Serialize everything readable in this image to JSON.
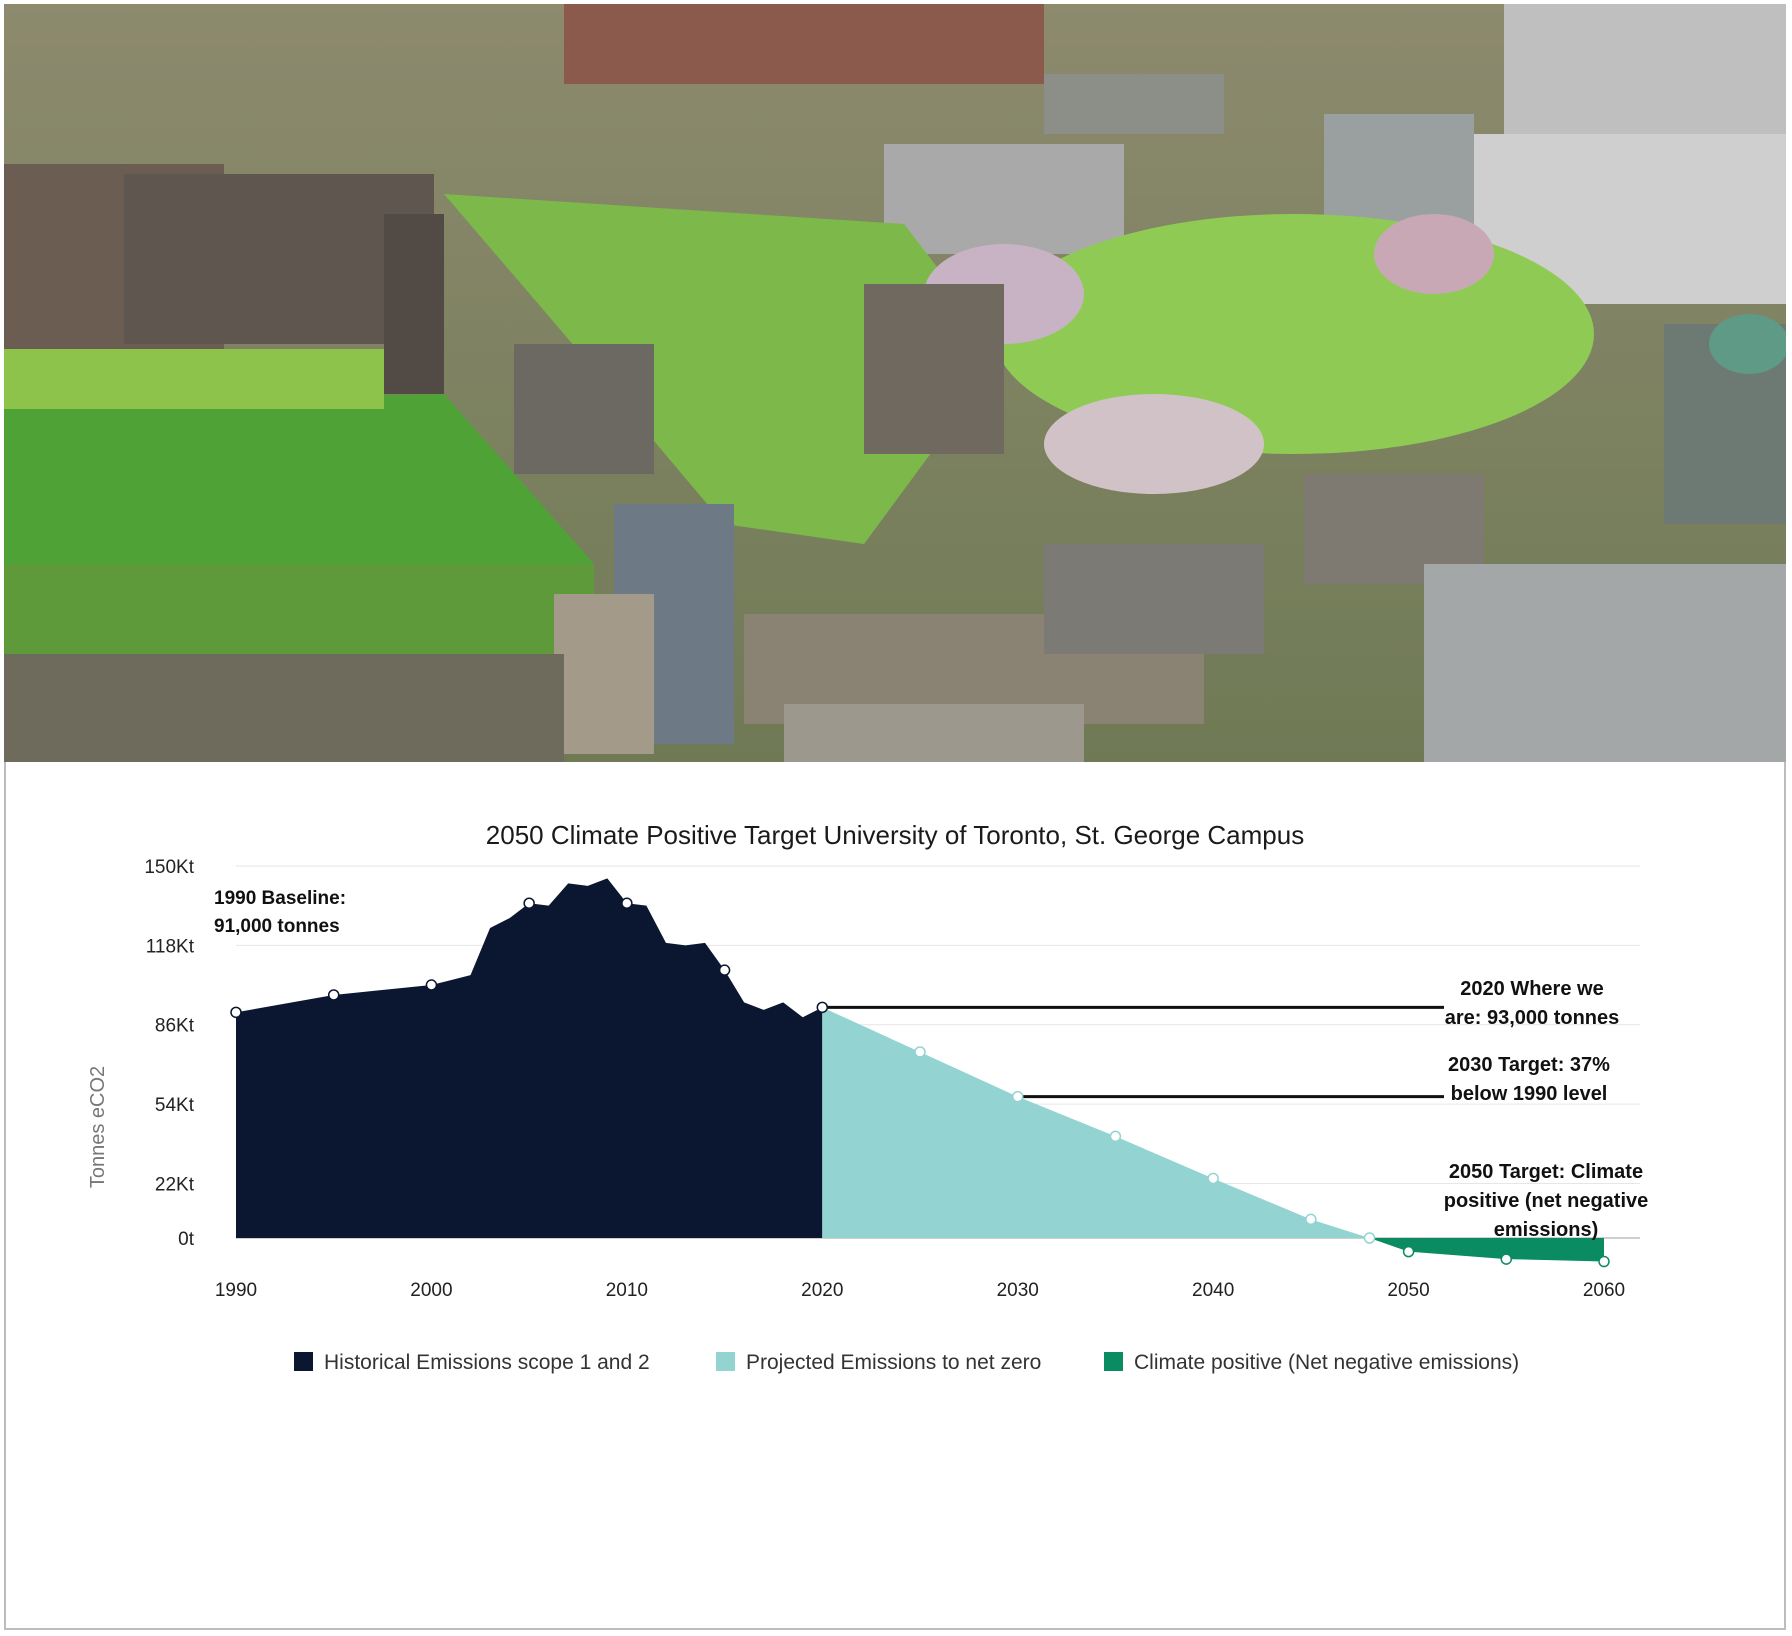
{
  "photo": {
    "description_icon": "aerial-campus-photo"
  },
  "chart_data": {
    "type": "area",
    "title": "2050 Climate Positive Target University of Toronto, St. George Campus",
    "ylabel": "Tonnes eCO2",
    "xlabel": "",
    "x_ticks": [
      1990,
      2000,
      2010,
      2020,
      2030,
      2040,
      2050,
      2060
    ],
    "y_ticks": [
      {
        "value": 0,
        "label": "0t"
      },
      {
        "value": 22000,
        "label": "22Kt"
      },
      {
        "value": 54000,
        "label": "54Kt"
      },
      {
        "value": 86000,
        "label": "86Kt"
      },
      {
        "value": 118000,
        "label": "118Kt"
      },
      {
        "value": 150000,
        "label": "150Kt"
      }
    ],
    "xlim": [
      1990,
      2060
    ],
    "ylim": [
      -10000,
      150000
    ],
    "grid": true,
    "legend_position": "bottom",
    "series": [
      {
        "name": "Historical Emissions scope 1 and 2",
        "color": "#0b1630",
        "points": [
          [
            1990,
            91000
          ],
          [
            1995,
            98000
          ],
          [
            2000,
            102000
          ],
          [
            2001,
            104000
          ],
          [
            2002,
            106000
          ],
          [
            2003,
            125000
          ],
          [
            2004,
            129000
          ],
          [
            2005,
            135000
          ],
          [
            2006,
            134000
          ],
          [
            2007,
            143000
          ],
          [
            2008,
            142000
          ],
          [
            2009,
            145000
          ],
          [
            2010,
            135000
          ],
          [
            2011,
            134000
          ],
          [
            2012,
            119000
          ],
          [
            2013,
            118000
          ],
          [
            2014,
            119000
          ],
          [
            2015,
            108000
          ],
          [
            2016,
            95000
          ],
          [
            2017,
            92000
          ],
          [
            2018,
            95000
          ],
          [
            2019,
            89000
          ],
          [
            2020,
            93000
          ]
        ],
        "markers": [
          1990,
          1995,
          2000,
          2005,
          2010,
          2015,
          2020
        ]
      },
      {
        "name": "Projected Emissions to net zero",
        "color": "#93d4d2",
        "points": [
          [
            2020,
            93000
          ],
          [
            2025,
            75000
          ],
          [
            2030,
            57000
          ],
          [
            2035,
            41000
          ],
          [
            2040,
            24000
          ],
          [
            2045,
            7500
          ],
          [
            2048,
            0
          ]
        ],
        "markers": [
          2025,
          2030,
          2035,
          2040,
          2045,
          2048
        ]
      },
      {
        "name": "Climate positive (Net negative emissions)",
        "color": "#0b8b62",
        "points": [
          [
            2048,
            0
          ],
          [
            2050,
            -5500
          ],
          [
            2055,
            -8500
          ],
          [
            2060,
            -9500
          ]
        ],
        "markers": [
          2050,
          2055,
          2060
        ]
      }
    ],
    "annotations": [
      {
        "lines": [
          "1990 Baseline:",
          "91,000 tonnes"
        ]
      },
      {
        "lines": [
          "2020 Where we",
          "are: 93,000 tonnes"
        ]
      },
      {
        "lines": [
          "2030 Target: 37%",
          "below 1990 level"
        ]
      },
      {
        "lines": [
          "2050 Target: Climate",
          "positive (net negative",
          "emissions)"
        ]
      }
    ]
  }
}
